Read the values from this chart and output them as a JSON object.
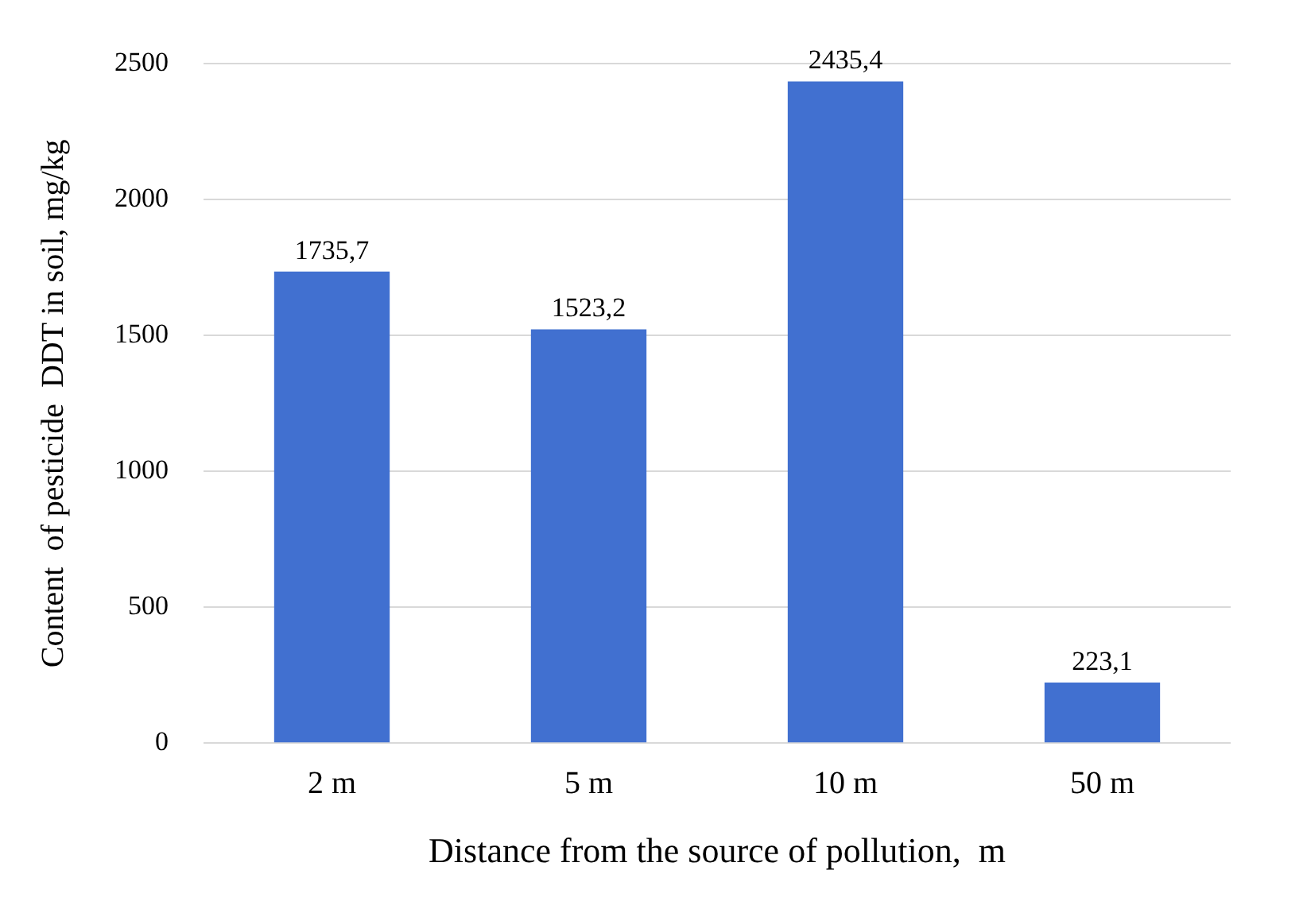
{
  "chart_data": {
    "type": "bar",
    "xlabel": "Distance from the source of pollution,  m",
    "ylabel": "Content  of pesticide  DDT in soil, mg/kg",
    "categories": [
      "2 m",
      "5 m",
      "10 m",
      "50 m"
    ],
    "values": [
      1735.7,
      1523.2,
      2435.4,
      223.1
    ],
    "value_labels": [
      "1735,7",
      "1523,2",
      "2435,4",
      "223,1"
    ],
    "color": "#4170d0",
    "ylim": [
      0,
      2500
    ],
    "yticks": [
      0,
      500,
      1000,
      1500,
      2000,
      2500
    ],
    "grid": "y",
    "legend": false
  }
}
